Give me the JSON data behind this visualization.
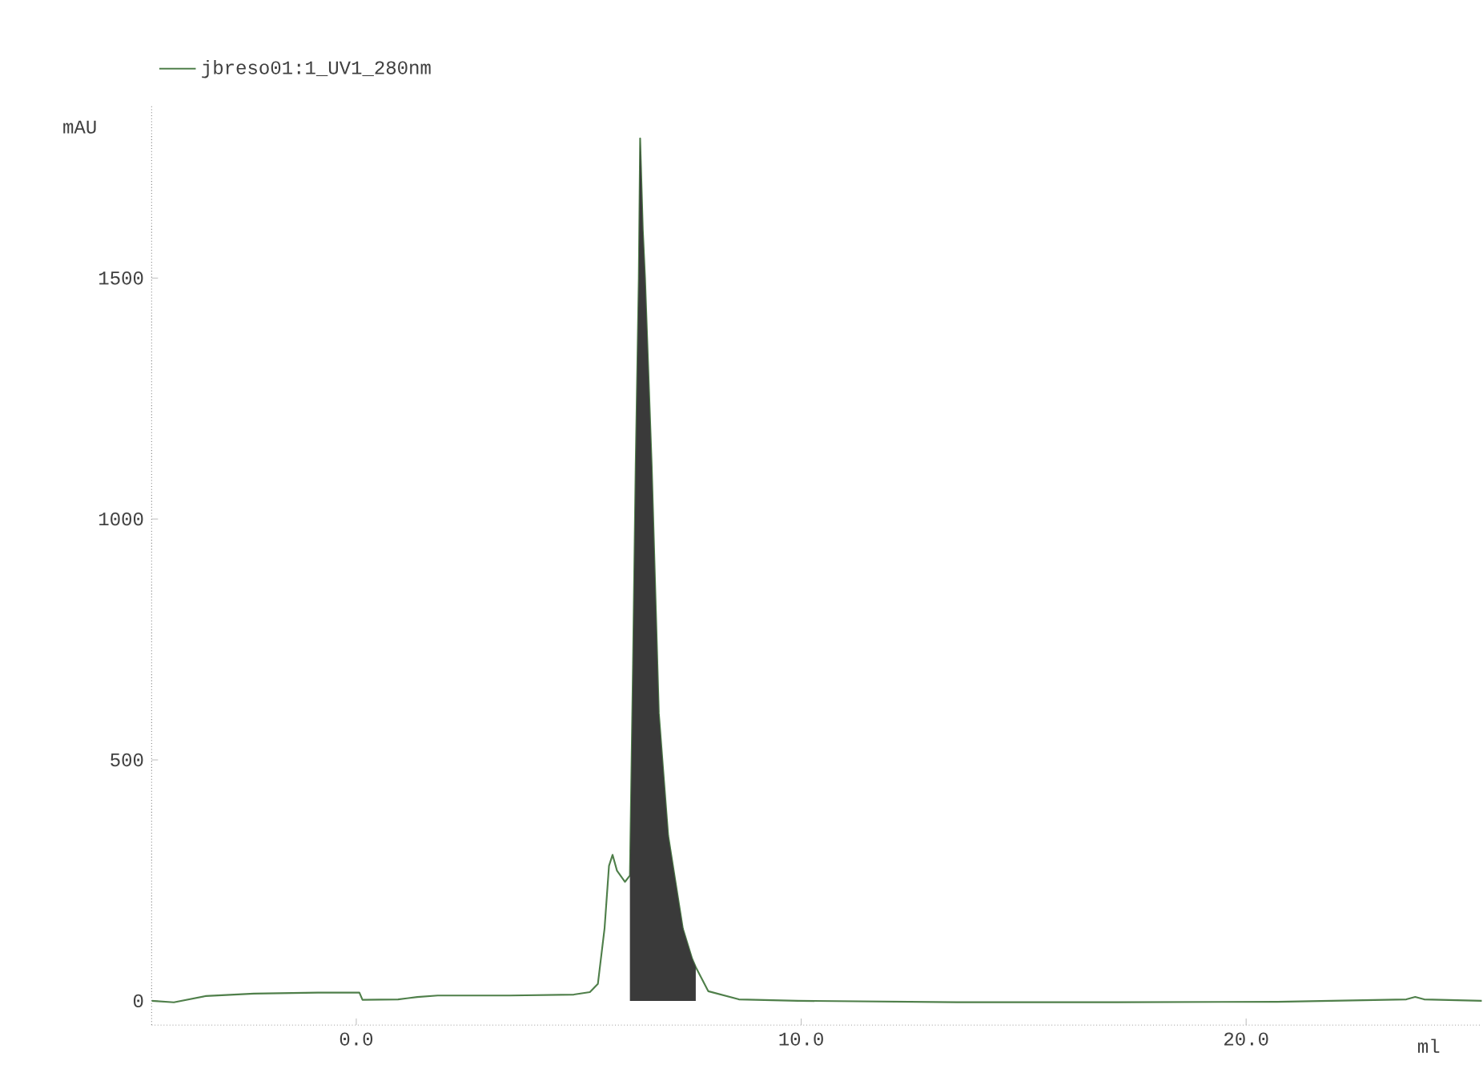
{
  "chart_data": {
    "type": "line",
    "xlabel": "ml",
    "ylabel": "mAU",
    "xlim": [
      -4.6,
      25.3
    ],
    "ylim": [
      -50,
      1860
    ],
    "xticks": [
      {
        "value": 0,
        "label": "0.0"
      },
      {
        "value": 10,
        "label": "10.0"
      },
      {
        "value": 20,
        "label": "20.0"
      }
    ],
    "yticks": [
      0,
      500,
      1000,
      1500
    ],
    "legend": "top left",
    "grid": false,
    "line_style": "solid",
    "marker": "none",
    "series": [
      {
        "name": "jbreso01:1_UV1_280nm",
        "color": "#4f7f4a",
        "x": [
          -4.6,
          -4.1,
          -3.38,
          -2.3,
          -0.86,
          0.07,
          0.14,
          0.94,
          1.37,
          1.83,
          3.45,
          4.89,
          5.25,
          5.43,
          5.58,
          5.68,
          5.76,
          5.86,
          6.04,
          6.15,
          6.22,
          6.28,
          6.35,
          6.38,
          6.44,
          6.49,
          6.64,
          6.8,
          7.01,
          7.34,
          7.55,
          7.63,
          7.91,
          8.6,
          9.93,
          13.5,
          17.1,
          20.7,
          23.6,
          23.8,
          24.0,
          25.3
        ],
        "values": [
          0,
          -3,
          10,
          15,
          17,
          17,
          2,
          3,
          8,
          11,
          11,
          13,
          18,
          35,
          150,
          280,
          303,
          270,
          247,
          260,
          700,
          1110,
          1500,
          1790,
          1600,
          1500,
          1110,
          597,
          343,
          150,
          87,
          70,
          20,
          3,
          0,
          -3,
          -3,
          -2,
          3,
          8,
          3,
          0
        ]
      },
      {
        "color": "#3a3a3a",
        "type": "area",
        "x": [
          6.15,
          6.22,
          6.28,
          6.35,
          6.38,
          6.44,
          6.49,
          6.64,
          6.8,
          7.01,
          7.34,
          7.55,
          7.63
        ],
        "values": [
          260,
          700,
          1110,
          1500,
          1790,
          1600,
          1500,
          1110,
          597,
          343,
          150,
          87,
          70
        ]
      }
    ]
  }
}
